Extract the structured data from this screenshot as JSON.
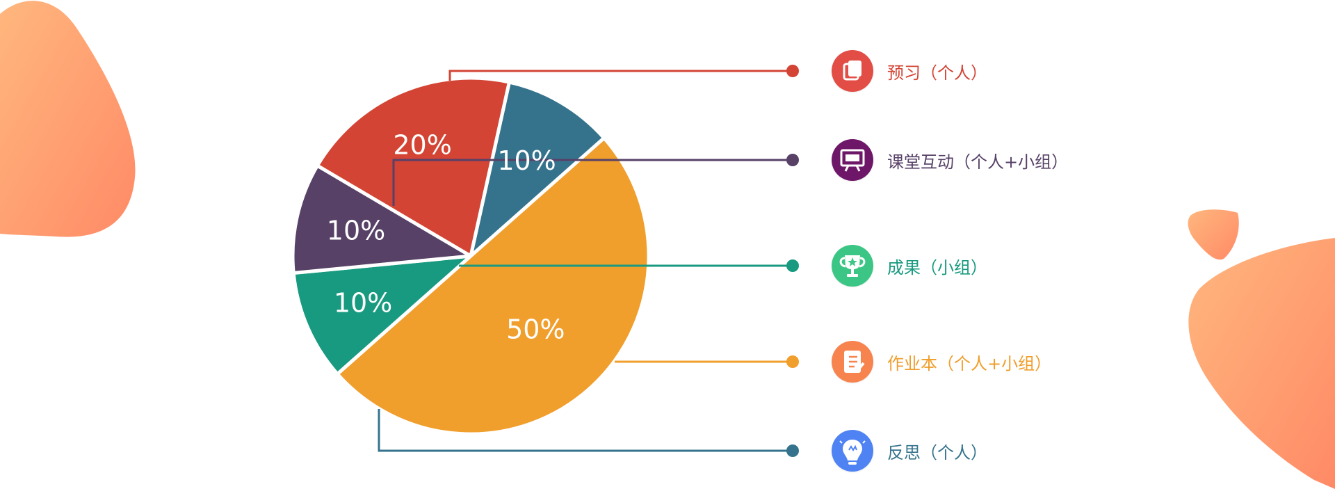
{
  "chart_data": {
    "type": "pie",
    "slices": [
      {
        "key": "preview",
        "value": 20,
        "label": "20%",
        "color": "#D34434",
        "legend": "预习（个人）",
        "icon": "book-icon",
        "icon_color": "#E24D45"
      },
      {
        "key": "classroom",
        "value": 10,
        "label": "10%",
        "color": "#574167",
        "legend": "课堂互动（个人+小组）",
        "icon": "presentation-board-icon",
        "icon_color": "#6E1768"
      },
      {
        "key": "results",
        "value": 10,
        "label": "10%",
        "color": "#179A7F",
        "legend": "成果（小组）",
        "icon": "trophy-icon",
        "icon_color": "#3CC685"
      },
      {
        "key": "homework",
        "value": 50,
        "label": "50%",
        "color": "#F09E2C",
        "legend": "作业本（个人+小组）",
        "icon": "notebook-icon",
        "icon_color": "#F7834E"
      },
      {
        "key": "reflection",
        "value": 10,
        "label": "10%",
        "color": "#35738D",
        "legend": "反思（个人）",
        "icon": "lightbulb-icon",
        "icon_color": "#4F82F3"
      }
    ]
  }
}
